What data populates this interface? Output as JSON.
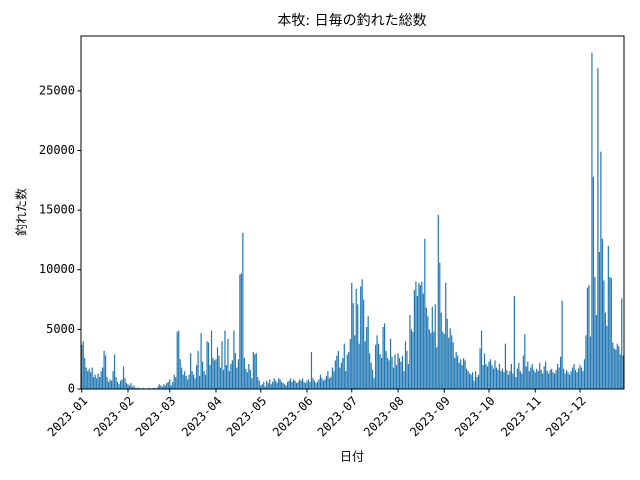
{
  "chart_data": {
    "type": "bar",
    "title": "本牧: 日毎の釣れた総数",
    "xlabel": "日付",
    "ylabel": "釣れた数",
    "x": [
      0,
      1,
      2,
      3,
      4,
      5,
      6,
      7,
      8,
      9,
      10,
      11,
      12,
      13,
      14,
      15,
      16,
      17,
      18,
      19,
      20,
      21,
      22,
      23,
      24,
      25,
      26,
      27,
      28,
      29,
      30,
      31,
      32,
      33,
      34,
      35,
      36,
      37,
      38,
      39,
      40,
      41,
      42,
      43,
      44,
      45,
      46,
      47,
      48,
      49,
      50,
      51,
      52,
      53,
      54,
      55,
      56,
      57,
      58,
      59,
      60,
      61,
      62,
      63,
      64,
      65,
      66,
      67,
      68,
      69,
      70,
      71,
      72,
      73,
      74,
      75,
      76,
      77,
      78,
      79,
      80,
      81,
      82,
      83,
      84,
      85,
      86,
      87,
      88,
      89,
      90,
      91,
      92,
      93,
      94,
      95,
      96,
      97,
      98,
      99,
      100,
      101,
      102,
      103,
      104,
      105,
      106,
      107,
      108,
      109,
      110,
      111,
      112,
      113,
      114,
      115,
      116,
      117,
      118,
      119,
      120,
      121,
      122,
      123,
      124,
      125,
      126,
      127,
      128,
      129,
      130,
      131,
      132,
      133,
      134,
      135,
      136,
      137,
      138,
      139,
      140,
      141,
      142,
      143,
      144,
      145,
      146,
      147,
      148,
      149,
      150,
      151,
      152,
      153,
      154,
      155,
      156,
      157,
      158,
      159,
      160,
      161,
      162,
      163,
      164,
      165,
      166,
      167,
      168,
      169,
      170,
      171,
      172,
      173,
      174,
      175,
      176,
      177,
      178,
      179,
      180,
      181,
      182,
      183,
      184,
      185,
      186,
      187,
      188,
      189,
      190,
      191,
      192,
      193,
      194,
      195,
      196,
      197,
      198,
      199,
      200,
      201,
      202,
      203,
      204,
      205,
      206,
      207,
      208,
      209,
      210,
      211,
      212,
      213,
      214,
      215,
      216,
      217,
      218,
      219,
      220,
      221,
      222,
      223,
      224,
      225,
      226,
      227,
      228,
      229,
      230,
      231,
      232,
      233,
      234,
      235,
      236,
      237,
      238,
      239,
      240,
      241,
      242,
      243,
      244,
      245,
      246,
      247,
      248,
      249,
      250,
      251,
      252,
      253,
      254,
      255,
      256,
      257,
      258,
      259,
      260,
      261,
      262,
      263,
      264,
      265,
      266,
      267,
      268,
      269,
      270,
      271,
      272,
      273,
      274,
      275,
      276,
      277,
      278,
      279,
      280,
      281,
      282,
      283,
      284,
      285,
      286,
      287,
      288,
      289,
      290,
      291,
      292,
      293,
      294,
      295,
      296,
      297,
      298,
      299,
      300,
      301,
      302,
      303,
      304,
      305,
      306,
      307,
      308,
      309,
      310,
      311,
      312,
      313,
      314,
      315,
      316,
      317,
      318,
      319,
      320,
      321,
      322,
      323,
      324,
      325,
      326,
      327,
      328,
      329,
      330,
      331,
      332,
      333,
      334,
      335,
      336,
      337,
      338,
      339,
      340,
      341,
      342,
      343,
      344,
      345,
      346,
      347,
      348,
      349,
      350,
      351,
      352,
      353,
      354,
      355,
      356,
      357,
      358,
      359,
      360,
      361,
      362,
      363
    ],
    "values": [
      3700,
      4000,
      2600,
      1800,
      1500,
      1700,
      1400,
      1800,
      1000,
      1200,
      900,
      1300,
      1000,
      1500,
      1800,
      3200,
      2800,
      1000,
      600,
      800,
      700,
      1500,
      2900,
      1000,
      600,
      400,
      700,
      800,
      1900,
      900,
      500,
      400,
      300,
      500,
      200,
      300,
      100,
      100,
      100,
      50,
      50,
      100,
      50,
      50,
      50,
      100,
      50,
      50,
      100,
      100,
      50,
      200,
      400,
      300,
      200,
      400,
      300,
      500,
      600,
      800,
      300,
      600,
      1200,
      1000,
      4800,
      4900,
      2500,
      1800,
      1200,
      1500,
      1100,
      800,
      1200,
      3000,
      1500,
      1200,
      900,
      2000,
      3200,
      1100,
      4700,
      2300,
      1500,
      1200,
      4000,
      3900,
      2000,
      4900,
      2600,
      2400,
      2500,
      3500,
      2800,
      1800,
      4000,
      1600,
      4900,
      2000,
      4200,
      1500,
      2100,
      2400,
      4900,
      3000,
      1800,
      2500,
      9600,
      9700,
      13100,
      2600,
      1700,
      1400,
      2100,
      1600,
      900,
      3100,
      2900,
      3000,
      1000,
      700,
      300,
      400,
      600,
      200,
      700,
      500,
      800,
      400,
      600,
      900,
      700,
      500,
      900,
      800,
      600,
      500,
      400,
      300,
      600,
      700,
      900,
      600,
      800,
      700,
      500,
      600,
      800,
      700,
      900,
      600,
      500,
      700,
      800,
      600,
      3100,
      900,
      700,
      500,
      600,
      800,
      1200,
      900,
      700,
      800,
      1100,
      1500,
      900,
      1000,
      1800,
      1500,
      2400,
      2800,
      3200,
      1800,
      2200,
      2600,
      3800,
      1500,
      2900,
      3100,
      4200,
      8900,
      7200,
      4500,
      8400,
      7100,
      3800,
      8600,
      9200,
      7500,
      4000,
      5200,
      6100,
      3000,
      2200,
      1600,
      900,
      3700,
      4500,
      3800,
      2900,
      2600,
      5200,
      5500,
      3200,
      2600,
      2400,
      4200,
      2700,
      1800,
      2900,
      2000,
      3000,
      2600,
      2300,
      2800,
      1500,
      4000,
      3200,
      2100,
      6200,
      5000,
      4800,
      8300,
      9000,
      7800,
      8900,
      8700,
      9000,
      8000,
      12600,
      6800,
      6100,
      5000,
      4700,
      6900,
      4800,
      7100,
      3500,
      14600,
      10600,
      6400,
      4800,
      4600,
      8900,
      5900,
      4300,
      5100,
      4500,
      3900,
      2600,
      3100,
      2800,
      2200,
      2500,
      2000,
      2600,
      2400,
      1700,
      1500,
      1300,
      1200,
      1400,
      700,
      1500,
      1000,
      1200,
      3400,
      4900,
      2000,
      3000,
      2100,
      1900,
      2300,
      2500,
      2000,
      1700,
      2400,
      1800,
      1600,
      2100,
      1500,
      1700,
      1400,
      3800,
      1600,
      1200,
      1500,
      2100,
      1300,
      7800,
      1000,
      1700,
      2200,
      1500,
      1300,
      2800,
      4600,
      1900,
      2300,
      1500,
      1800,
      2100,
      1600,
      1400,
      1700,
      1500,
      2200,
      1600,
      1300,
      1900,
      2300,
      1500,
      1300,
      1600,
      1700,
      1400,
      1300,
      1600,
      2100,
      1800,
      2700,
      7400,
      1700,
      1300,
      1600,
      1400,
      1200,
      1500,
      1800,
      2100,
      1600,
      1400,
      1700,
      2000,
      1800,
      1500,
      2500,
      4500,
      8500,
      8700,
      4400,
      28200,
      17800,
      9400,
      6200,
      26900,
      11500,
      19900,
      12600,
      9100,
      6400,
      5300,
      12000,
      9400,
      9300,
      3900,
      3400,
      3300,
      3800,
      3600,
      2900,
      7600,
      2800
    ],
    "color": "#1f77b4",
    "xlim": [
      -0.5,
      363.5
    ],
    "xticks": [
      {
        "value": 0,
        "label": "2023-01"
      },
      {
        "value": 31,
        "label": "2023-02"
      },
      {
        "value": 59,
        "label": "2023-03"
      },
      {
        "value": 90,
        "label": "2023-04"
      },
      {
        "value": 120,
        "label": "2023-05"
      },
      {
        "value": 151,
        "label": "2023-06"
      },
      {
        "value": 181,
        "label": "2023-07"
      },
      {
        "value": 212,
        "label": "2023-08"
      },
      {
        "value": 243,
        "label": "2023-09"
      },
      {
        "value": 273,
        "label": "2023-10"
      },
      {
        "value": 304,
        "label": "2023-11"
      },
      {
        "value": 334,
        "label": "2023-12"
      }
    ],
    "ylim": [
      0,
      29600
    ],
    "yticks": [
      0,
      5000,
      10000,
      15000,
      20000,
      25000
    ]
  }
}
